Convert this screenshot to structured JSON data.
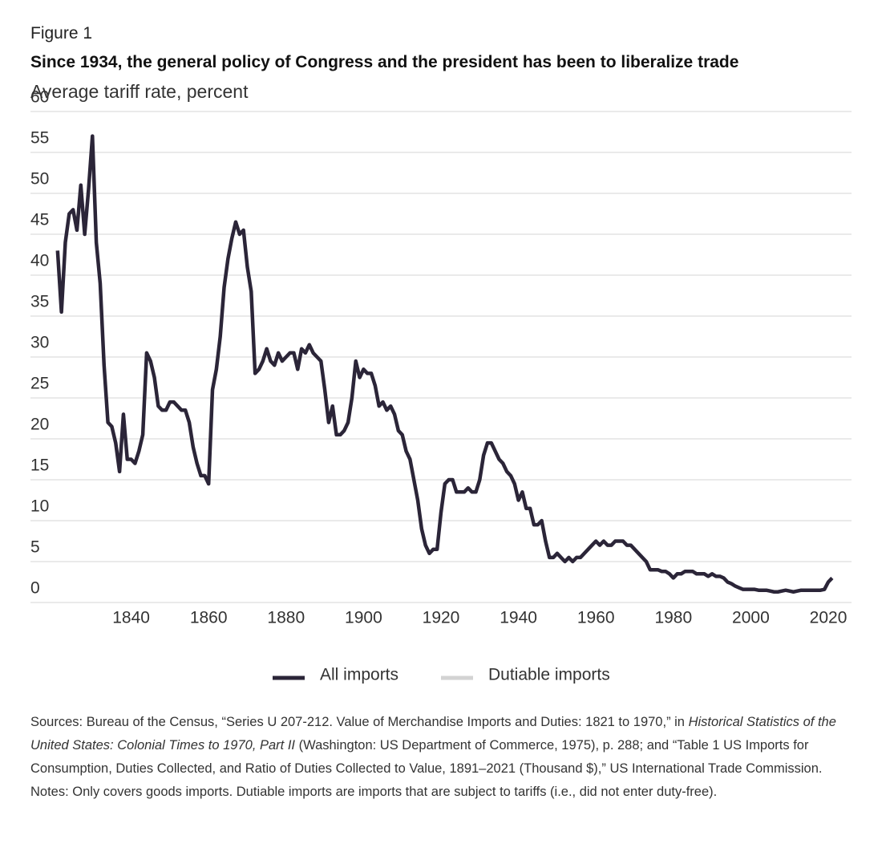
{
  "chart_data": {
    "type": "line",
    "figure_label": "Figure 1",
    "title": "Since 1934, the general policy of Congress and the president has been to liberalize trade",
    "y_label": "Average tariff rate, percent",
    "x": [
      1821,
      1822,
      1823,
      1824,
      1825,
      1826,
      1827,
      1828,
      1829,
      1830,
      1831,
      1832,
      1833,
      1834,
      1835,
      1836,
      1837,
      1838,
      1839,
      1840,
      1841,
      1842,
      1843,
      1844,
      1845,
      1846,
      1847,
      1848,
      1849,
      1850,
      1851,
      1852,
      1853,
      1854,
      1855,
      1856,
      1857,
      1858,
      1859,
      1860,
      1861,
      1862,
      1863,
      1864,
      1865,
      1866,
      1867,
      1868,
      1869,
      1870,
      1871,
      1872,
      1873,
      1874,
      1875,
      1876,
      1877,
      1878,
      1879,
      1880,
      1881,
      1882,
      1883,
      1884,
      1885,
      1886,
      1887,
      1888,
      1889,
      1890,
      1891,
      1892,
      1893,
      1894,
      1895,
      1896,
      1897,
      1898,
      1899,
      1900,
      1901,
      1902,
      1903,
      1904,
      1905,
      1906,
      1907,
      1908,
      1909,
      1910,
      1911,
      1912,
      1913,
      1914,
      1915,
      1916,
      1917,
      1918,
      1919,
      1920,
      1921,
      1922,
      1923,
      1924,
      1925,
      1926,
      1927,
      1928,
      1929,
      1930,
      1931,
      1932,
      1933,
      1934,
      1935,
      1936,
      1937,
      1938,
      1939,
      1940,
      1941,
      1942,
      1943,
      1944,
      1945,
      1946,
      1947,
      1948,
      1949,
      1950,
      1951,
      1952,
      1953,
      1954,
      1955,
      1956,
      1957,
      1958,
      1959,
      1960,
      1961,
      1962,
      1963,
      1964,
      1965,
      1966,
      1967,
      1968,
      1969,
      1970,
      1971,
      1972,
      1973,
      1974,
      1975,
      1976,
      1977,
      1978,
      1979,
      1980,
      1981,
      1982,
      1983,
      1984,
      1985,
      1986,
      1987,
      1988,
      1989,
      1990,
      1991,
      1992,
      1993,
      1994,
      1995,
      1996,
      1997,
      1998,
      1999,
      2000,
      2001,
      2002,
      2003,
      2004,
      2005,
      2006,
      2007,
      2008,
      2009,
      2010,
      2011,
      2012,
      2013,
      2014,
      2015,
      2016,
      2017,
      2018,
      2019,
      2020,
      2021
    ],
    "series": [
      {
        "name": "All imports",
        "color": "#2b2538",
        "values": [
          43,
          35.5,
          44,
          47.5,
          48,
          45.5,
          51,
          45,
          50.5,
          57,
          44,
          39,
          29,
          22,
          21.5,
          19.5,
          16,
          23,
          17.5,
          17.5,
          17,
          18.5,
          20.5,
          30.5,
          29.5,
          27.5,
          24,
          23.5,
          23.5,
          24.5,
          24.5,
          24,
          23.5,
          23.5,
          22,
          19,
          17,
          15.5,
          15.5,
          14.5,
          26,
          28.5,
          32.5,
          38.5,
          42,
          44.5,
          46.5,
          45,
          45.5,
          41,
          38,
          28,
          28.5,
          29.5,
          31,
          29.5,
          29,
          30.5,
          29.5,
          30,
          30.5,
          30.5,
          28.5,
          31,
          30.5,
          31.5,
          30.5,
          30,
          29.5,
          26,
          22,
          24,
          20.5,
          20.5,
          21,
          22,
          25,
          29.5,
          27.5,
          28.5,
          28,
          28,
          26.5,
          24,
          24.5,
          23.5,
          24,
          23,
          21,
          20.5,
          18.5,
          17.5,
          15,
          12.5,
          9,
          7,
          6,
          6.5,
          6.5,
          11,
          14.5,
          15,
          15,
          13.5,
          13.5,
          13.5,
          14,
          13.5,
          13.5,
          15,
          18,
          19.5,
          19.5,
          18.5,
          17.5,
          17,
          16,
          15.5,
          14.5,
          12.5,
          13.5,
          11.5,
          11.5,
          9.5,
          9.5,
          10,
          7.5,
          5.5,
          5.5,
          6,
          5.5,
          5,
          5.5,
          5,
          5.5,
          5.5,
          6,
          6.5,
          7,
          7.5,
          7,
          7.5,
          7,
          7,
          7.5,
          7.5,
          7.5,
          7,
          7,
          6.5,
          6,
          5.5,
          5,
          4,
          4,
          4,
          3.8,
          3.8,
          3.5,
          3,
          3.5,
          3.5,
          3.8,
          3.8,
          3.8,
          3.5,
          3.5,
          3.5,
          3.2,
          3.5,
          3.2,
          3.2,
          3,
          2.5,
          2.3,
          2,
          1.8,
          1.6,
          1.6,
          1.6,
          1.6,
          1.5,
          1.5,
          1.5,
          1.4,
          1.3,
          1.3,
          1.4,
          1.5,
          1.4,
          1.3,
          1.4,
          1.5,
          1.5,
          1.5,
          1.5,
          1.5,
          1.5,
          1.6,
          2.5,
          3
        ]
      },
      {
        "name": "Dutiable imports",
        "color": "#d3d3d3"
      }
    ],
    "xlim": [
      1814,
      2026
    ],
    "xticks": [
      1840,
      1860,
      1880,
      1900,
      1920,
      1940,
      1960,
      1980,
      2000,
      2020
    ],
    "ylim": [
      0,
      60
    ],
    "yticks": [
      0,
      5,
      10,
      15,
      20,
      25,
      30,
      35,
      40,
      45,
      50,
      55,
      60
    ],
    "grid": true,
    "sources": [
      "Sources: Bureau of the Census, “Series U 207-212. Value of Merchandise Imports and Duties: 1821 to 1970,” in ",
      "Historical Statistics of the United States: Colonial Times to 1970, Part II",
      " (Washington: US Department of Commerce, 1975), p. 288; and “Table 1 US Imports for Consumption, Duties Collected, and Ratio of Duties Collected to Value, 1891–2021 (Thousand $),” US International Trade Commission."
    ],
    "note": "Notes: Only covers goods imports. Dutiable imports are imports that are subject to tariffs (i.e., did not enter duty-free)."
  }
}
